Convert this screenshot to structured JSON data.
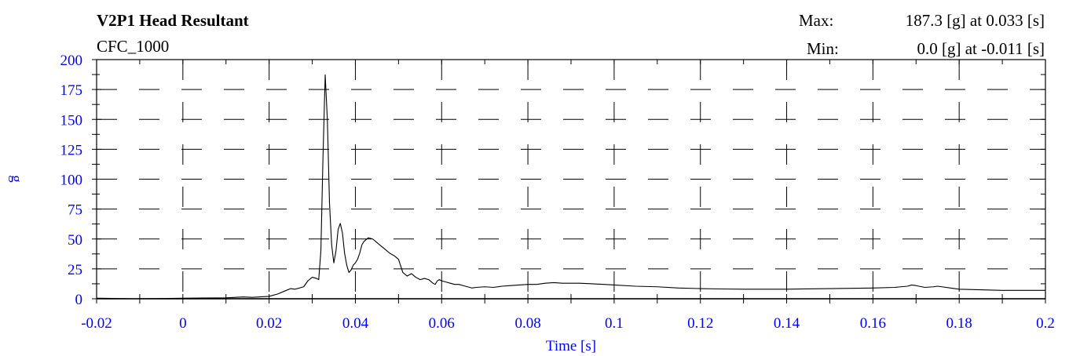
{
  "header": {
    "title": "V2P1 Head Resultant",
    "filter": "CFC_1000",
    "max_label": "Max:",
    "max_value": "187.3 [g] at 0.033 [s]",
    "min_label": "Min:",
    "min_value": "0.0 [g] at -0.011 [s]"
  },
  "chart_data": {
    "type": "line",
    "title": "V2P1 Head Resultant",
    "subtitle": "CFC_1000",
    "xlabel": "Time [s]",
    "ylabel": "g",
    "xlim": [
      -0.02,
      0.2
    ],
    "ylim": [
      0,
      200
    ],
    "x_ticks": [
      "-0.02",
      "0",
      "0.02",
      "0.04",
      "0.06",
      "0.08",
      "0.1",
      "0.12",
      "0.14",
      "0.16",
      "0.18",
      "0.2"
    ],
    "x_tick_values": [
      -0.02,
      0,
      0.02,
      0.04,
      0.06,
      0.08,
      0.1,
      0.12,
      0.14,
      0.16,
      0.18,
      0.2
    ],
    "y_ticks": [
      "0",
      "25",
      "50",
      "75",
      "100",
      "125",
      "150",
      "175",
      "200"
    ],
    "y_tick_values": [
      0,
      25,
      50,
      75,
      100,
      125,
      150,
      175,
      200
    ],
    "grid": true,
    "grid_style": "dashed",
    "tick_color": "#0000ff",
    "line_color": "#000000",
    "series": [
      {
        "x": [
          -0.02,
          -0.011,
          0.0,
          0.01,
          0.014,
          0.016,
          0.02,
          0.022,
          0.024,
          0.025,
          0.026,
          0.028,
          0.029,
          0.03,
          0.031,
          0.0315,
          0.032,
          0.0325,
          0.033,
          0.0335,
          0.034,
          0.0345,
          0.035,
          0.0355,
          0.036,
          0.0365,
          0.037,
          0.0375,
          0.038,
          0.0385,
          0.039,
          0.0395,
          0.04,
          0.0405,
          0.041,
          0.0415,
          0.042,
          0.043,
          0.044,
          0.045,
          0.046,
          0.047,
          0.048,
          0.049,
          0.05,
          0.051,
          0.052,
          0.053,
          0.054,
          0.055,
          0.056,
          0.057,
          0.058,
          0.0585,
          0.059,
          0.0595,
          0.06,
          0.061,
          0.062,
          0.063,
          0.064,
          0.065,
          0.066,
          0.067,
          0.068,
          0.07,
          0.072,
          0.074,
          0.076,
          0.078,
          0.08,
          0.082,
          0.084,
          0.086,
          0.088,
          0.09,
          0.092,
          0.095,
          0.1,
          0.105,
          0.11,
          0.115,
          0.12,
          0.125,
          0.13,
          0.14,
          0.15,
          0.16,
          0.165,
          0.168,
          0.169,
          0.17,
          0.172,
          0.174,
          0.175,
          0.176,
          0.178,
          0.18,
          0.185,
          0.19,
          0.195,
          0.2
        ],
        "y": [
          0.5,
          0.0,
          0.5,
          0.8,
          1.5,
          1.2,
          2.0,
          4.0,
          7.0,
          8.5,
          8.0,
          10.0,
          15.0,
          18.0,
          17.0,
          16.0,
          40.0,
          120.0,
          187.3,
          150.0,
          80.0,
          45.0,
          30.0,
          40.0,
          58.0,
          63.0,
          55.0,
          38.0,
          28.0,
          22.0,
          24.0,
          28.0,
          30.0,
          33.0,
          38.0,
          45.0,
          48.0,
          51.0,
          50.0,
          47.0,
          44.0,
          41.0,
          38.0,
          36.0,
          33.0,
          22.0,
          19.0,
          21.0,
          18.0,
          16.0,
          17.0,
          16.0,
          13.0,
          12.0,
          15.0,
          16.0,
          15.0,
          14.0,
          13.0,
          12.0,
          12.0,
          11.0,
          10.0,
          9.0,
          9.5,
          10.0,
          9.5,
          10.5,
          11.0,
          11.5,
          12.0,
          12.0,
          13.0,
          13.5,
          13.0,
          13.0,
          13.0,
          12.5,
          11.5,
          10.5,
          10.0,
          9.0,
          8.5,
          8.2,
          8.0,
          8.0,
          8.5,
          9.0,
          9.5,
          10.5,
          11.5,
          11.0,
          9.5,
          10.0,
          10.5,
          10.0,
          9.0,
          8.0,
          7.5,
          7.0,
          7.0,
          7.0
        ]
      }
    ]
  }
}
